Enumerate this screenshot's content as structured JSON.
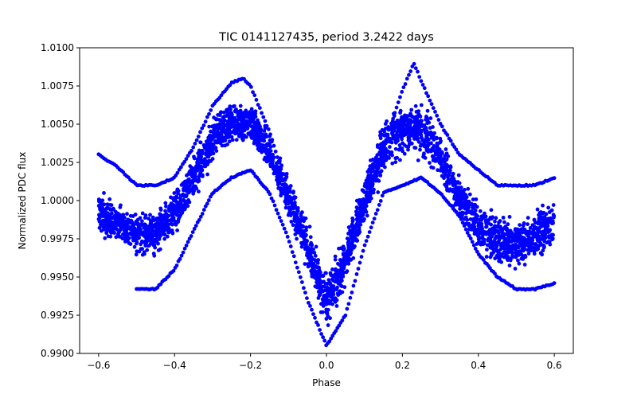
{
  "chart_data": {
    "type": "scatter",
    "title": "TIC 0141127435, period 3.2422 days",
    "xlabel": "Phase",
    "ylabel": "Normalized PDC flux",
    "xlim": [
      -0.65,
      0.65
    ],
    "ylim": [
      0.99,
      1.01
    ],
    "x_ticks": [
      -0.6,
      -0.4,
      -0.2,
      0.0,
      0.2,
      0.4,
      0.6
    ],
    "x_tick_labels": [
      "−0.6",
      "−0.4",
      "−0.2",
      "0.0",
      "0.2",
      "0.4",
      "0.6"
    ],
    "y_ticks": [
      0.99,
      0.9925,
      0.995,
      0.9975,
      1.0,
      1.0025,
      1.005,
      1.0075,
      1.01
    ],
    "y_tick_labels": [
      "0.9900",
      "0.9925",
      "0.9950",
      "0.9975",
      "1.0000",
      "1.0025",
      "1.0050",
      "1.0075",
      "1.0100"
    ],
    "grid": false,
    "marker_color": "#0000ff",
    "series": [
      {
        "description_hidden": true,
        "x": [
          -0.6,
          -0.55,
          -0.5,
          -0.45,
          -0.4,
          -0.35,
          -0.3,
          -0.25,
          -0.2,
          -0.15,
          -0.1,
          -0.05,
          0.0,
          0.05,
          0.1,
          0.15,
          0.2,
          0.25,
          0.3,
          0.35,
          0.4,
          0.45,
          0.5,
          0.55,
          0.6
        ],
        "y_center": [
          0.9992,
          0.9984,
          0.9978,
          0.998,
          0.999,
          1.0015,
          1.004,
          1.0055,
          1.0052,
          1.0032,
          1.0005,
          0.9972,
          0.9935,
          0.9962,
          1.0002,
          1.0035,
          1.005,
          1.0048,
          1.003,
          1.0005,
          0.9985,
          0.9975,
          0.9973,
          0.9978,
          0.9985
        ],
        "y_band_low": [
          0.9975,
          0.9968,
          0.996,
          0.996,
          0.9972,
          0.9995,
          1.002,
          1.0035,
          1.0035,
          1.0015,
          0.9985,
          0.995,
          0.9912,
          0.9942,
          0.998,
          1.0012,
          1.0025,
          1.0025,
          1.001,
          0.9985,
          0.9965,
          0.9955,
          0.995,
          0.9955,
          0.9965
        ],
        "y_band_high": [
          1.001,
          1.0,
          0.9995,
          0.9998,
          1.001,
          1.0035,
          1.0058,
          1.0068,
          1.0065,
          1.0048,
          1.002,
          0.999,
          0.9955,
          0.998,
          1.002,
          1.0055,
          1.007,
          1.0068,
          1.0048,
          1.002,
          1.0003,
          0.9995,
          0.9992,
          0.9998,
          1.0005
        ]
      },
      {
        "x": [
          -0.6,
          -0.55,
          -0.5,
          -0.45,
          -0.4,
          -0.35,
          -0.3,
          -0.25,
          -0.22,
          -0.2,
          -0.15,
          -0.1,
          -0.05,
          0.0,
          0.05,
          0.1,
          0.15,
          0.2,
          0.23,
          0.25,
          0.3,
          0.35,
          0.4,
          0.45,
          0.5,
          0.55,
          0.6
        ],
        "y": [
          1.003,
          1.0022,
          1.001,
          1.001,
          1.0015,
          1.0035,
          1.0062,
          1.0077,
          1.008,
          1.0075,
          1.0045,
          1.0005,
          0.9965,
          0.9935,
          0.996,
          0.9995,
          1.0035,
          1.0072,
          1.009,
          1.0078,
          1.005,
          1.003,
          1.002,
          1.001,
          1.001,
          1.001,
          1.0015
        ]
      },
      {
        "x": [
          -0.5,
          -0.45,
          -0.4,
          -0.35,
          -0.3,
          -0.25,
          -0.2,
          -0.15,
          -0.1,
          -0.05,
          0.0,
          0.05,
          0.1,
          0.15,
          0.2,
          0.25,
          0.3,
          0.35,
          0.4,
          0.45,
          0.5,
          0.55,
          0.6
        ],
        "y": [
          0.9942,
          0.9942,
          0.9955,
          0.998,
          1.0005,
          1.0015,
          1.002,
          1.0005,
          0.9975,
          0.9935,
          0.9905,
          0.9925,
          0.997,
          1.0005,
          1.001,
          1.0015,
          1.0005,
          0.999,
          0.9965,
          0.995,
          0.9942,
          0.9942,
          0.9946
        ]
      }
    ]
  }
}
